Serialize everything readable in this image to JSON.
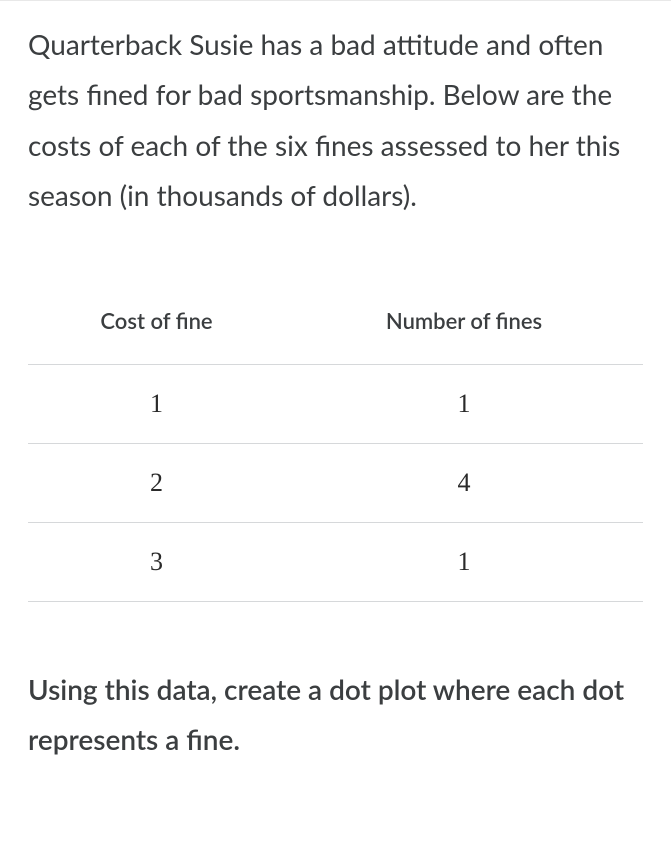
{
  "problem": {
    "intro": "Quarterback Susie has a bad attitude and often gets fined for bad sportsmanship. Below are the costs of each of the six fines assessed to her this season (in thousands of dollars).",
    "instruction": "Using this data, create a dot plot where each dot represents a fine."
  },
  "table": {
    "type": "table",
    "columns": [
      "Cost of fine",
      "Number of fines"
    ],
    "rows": [
      [
        "1",
        "1"
      ],
      [
        "2",
        "4"
      ],
      [
        "3",
        "1"
      ]
    ],
    "header_fontsize": 22,
    "cell_fontsize": 26,
    "cell_font_family": "Times New Roman",
    "border_color": "#d6d8da",
    "text_color": "#3b3e40",
    "background_color": "#ffffff"
  },
  "styles": {
    "body_text_color": "#3b3e40",
    "body_fontsize": 28,
    "instruction_fontweight": 600,
    "background_color": "#ffffff",
    "container_border_color": "#e8e8e8"
  }
}
